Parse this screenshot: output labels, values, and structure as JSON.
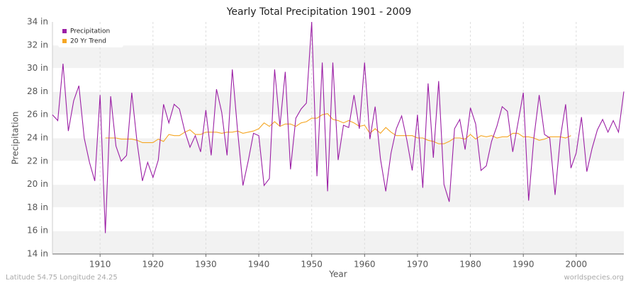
{
  "chart_data": {
    "type": "line",
    "title": "Yearly Total Precipitation 1901 - 2009",
    "x_label": "Year",
    "y_label": "Precipitation",
    "x": [
      1901,
      1902,
      1903,
      1904,
      1905,
      1906,
      1907,
      1908,
      1909,
      1910,
      1911,
      1912,
      1913,
      1914,
      1915,
      1916,
      1917,
      1918,
      1919,
      1920,
      1921,
      1922,
      1923,
      1924,
      1925,
      1926,
      1927,
      1928,
      1929,
      1930,
      1931,
      1932,
      1933,
      1934,
      1935,
      1936,
      1937,
      1938,
      1939,
      1940,
      1941,
      1942,
      1943,
      1944,
      1945,
      1946,
      1947,
      1948,
      1949,
      1950,
      1951,
      1952,
      1953,
      1954,
      1955,
      1956,
      1957,
      1958,
      1959,
      1960,
      1961,
      1962,
      1963,
      1964,
      1965,
      1966,
      1967,
      1968,
      1969,
      1970,
      1971,
      1972,
      1973,
      1974,
      1975,
      1976,
      1977,
      1978,
      1979,
      1980,
      1981,
      1982,
      1983,
      1984,
      1985,
      1986,
      1987,
      1988,
      1989,
      1990,
      1991,
      1992,
      1993,
      1994,
      1995,
      1996,
      1997,
      1998,
      1999,
      2000,
      2001,
      2002,
      2003,
      2004,
      2005,
      2006,
      2007,
      2008,
      2009
    ],
    "series": [
      {
        "name": "Precipitation",
        "color": "#9b1fa5",
        "values": [
          26.0,
          25.5,
          30.4,
          24.6,
          27.2,
          28.5,
          24.0,
          21.9,
          20.3,
          27.7,
          15.8,
          27.6,
          23.3,
          22.0,
          22.5,
          27.9,
          23.6,
          20.3,
          21.9,
          20.6,
          22.1,
          26.9,
          25.3,
          26.9,
          26.5,
          24.6,
          23.2,
          24.2,
          22.8,
          26.4,
          22.5,
          28.2,
          26.2,
          22.5,
          29.9,
          24.6,
          19.9,
          22.0,
          24.4,
          24.2,
          19.9,
          20.5,
          29.9,
          25.0,
          29.7,
          21.3,
          25.7,
          26.5,
          27.0,
          34.0,
          20.7,
          30.5,
          19.4,
          30.5,
          22.1,
          25.1,
          24.9,
          27.7,
          24.8,
          30.5,
          23.9,
          26.7,
          22.2,
          19.4,
          22.7,
          24.8,
          25.9,
          23.8,
          21.2,
          26.0,
          19.7,
          28.7,
          22.3,
          28.9,
          20.0,
          18.5,
          24.8,
          25.6,
          23.0,
          26.6,
          25.2,
          21.2,
          21.6,
          23.7,
          25.0,
          26.7,
          26.3,
          22.8,
          25.3,
          27.9,
          18.6,
          24.0,
          27.7,
          24.3,
          24.0,
          19.1,
          24.0,
          26.9,
          21.4,
          22.7,
          25.8,
          21.1,
          23.1,
          24.7,
          25.6,
          24.5,
          25.5,
          24.5,
          28.0
        ]
      },
      {
        "name": "20 Yr Trend",
        "color": "#f5a623",
        "values": [
          null,
          null,
          null,
          null,
          null,
          null,
          null,
          null,
          null,
          null,
          24.0,
          24.0,
          24.0,
          23.9,
          23.9,
          23.9,
          23.8,
          23.6,
          23.6,
          23.6,
          23.9,
          23.7,
          24.3,
          24.2,
          24.2,
          24.5,
          24.7,
          24.3,
          24.3,
          24.5,
          24.5,
          24.5,
          24.4,
          24.5,
          24.5,
          24.6,
          24.4,
          24.5,
          24.6,
          24.8,
          25.3,
          25.0,
          25.4,
          25.0,
          25.2,
          25.2,
          25.0,
          25.3,
          25.4,
          25.7,
          25.7,
          26.0,
          26.1,
          25.6,
          25.5,
          25.3,
          25.5,
          25.3,
          25.0,
          25.1,
          24.4,
          24.8,
          24.4,
          24.9,
          24.5,
          24.2,
          24.2,
          24.2,
          24.2,
          24.0,
          24.0,
          23.8,
          23.7,
          23.5,
          23.5,
          23.7,
          24.0,
          24.0,
          23.9,
          24.3,
          23.9,
          24.2,
          24.1,
          24.2,
          24.0,
          24.1,
          24.1,
          24.4,
          24.4,
          24.1,
          24.1,
          24.0,
          23.8,
          23.9,
          24.1,
          24.1,
          24.1,
          24.0,
          24.2,
          null,
          null,
          null,
          null,
          null,
          null,
          null,
          null,
          null,
          null
        ]
      }
    ],
    "xlim": [
      1901,
      2009
    ],
    "xticks": [
      1910,
      1920,
      1930,
      1940,
      1950,
      1960,
      1970,
      1980,
      1990,
      2000
    ],
    "ylim": [
      14,
      34
    ],
    "yticks": [
      {
        "value": 14,
        "label": "14 in"
      },
      {
        "value": 16,
        "label": "16 in"
      },
      {
        "value": 18,
        "label": "18 in"
      },
      {
        "value": 20,
        "label": "20 in"
      },
      {
        "value": 22,
        "label": "22 in"
      },
      {
        "value": 24,
        "label": "24 in"
      },
      {
        "value": 26,
        "label": "26 in"
      },
      {
        "value": 28,
        "label": "28 in"
      },
      {
        "value": 30,
        "label": "30 in"
      },
      {
        "value": 32,
        "label": "32 in"
      },
      {
        "value": 34,
        "label": "34 in"
      }
    ],
    "grid": true,
    "legend": "top-left",
    "footer_left": "Latitude 54.75 Longitude 24.25",
    "footer_right": "worldspecies.org"
  }
}
